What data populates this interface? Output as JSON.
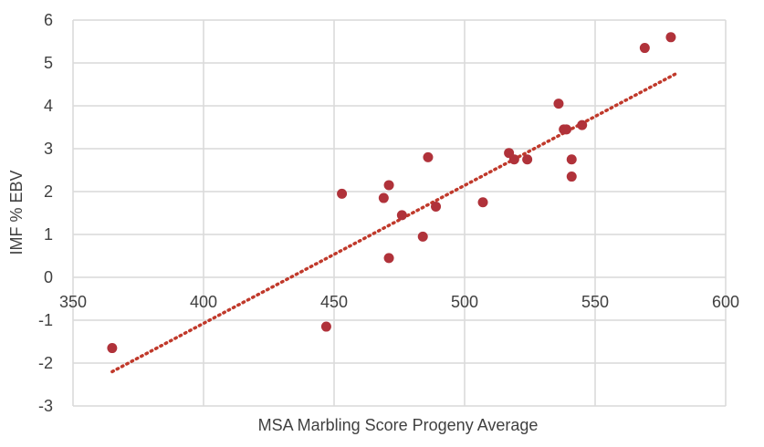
{
  "chart_data": {
    "type": "scatter",
    "xlabel": "MSA Marbling Score Progeny Average",
    "ylabel": "IMF % EBV",
    "xlim": [
      350,
      600
    ],
    "ylim": [
      -3,
      6
    ],
    "x_ticks": [
      350,
      400,
      450,
      500,
      550,
      600
    ],
    "y_ticks": [
      -3,
      -2,
      -1,
      0,
      1,
      2,
      3,
      4,
      5,
      6
    ],
    "grid": true,
    "series": [
      {
        "points": [
          {
            "x": 365,
            "y": -1.65
          },
          {
            "x": 447,
            "y": -1.15
          },
          {
            "x": 453,
            "y": 1.95
          },
          {
            "x": 469,
            "y": 1.85
          },
          {
            "x": 471,
            "y": 2.15
          },
          {
            "x": 471,
            "y": 0.45
          },
          {
            "x": 476,
            "y": 1.45
          },
          {
            "x": 484,
            "y": 0.95
          },
          {
            "x": 486,
            "y": 2.8
          },
          {
            "x": 489,
            "y": 1.65
          },
          {
            "x": 507,
            "y": 1.75
          },
          {
            "x": 517,
            "y": 2.9
          },
          {
            "x": 519,
            "y": 2.75
          },
          {
            "x": 524,
            "y": 2.75
          },
          {
            "x": 536,
            "y": 4.05
          },
          {
            "x": 538,
            "y": 3.45
          },
          {
            "x": 539,
            "y": 3.45
          },
          {
            "x": 541,
            "y": 2.75
          },
          {
            "x": 541,
            "y": 2.35
          },
          {
            "x": 545,
            "y": 3.55
          },
          {
            "x": 569,
            "y": 5.35
          },
          {
            "x": 579,
            "y": 5.6
          }
        ],
        "color": "#b0323a"
      }
    ],
    "trendline": {
      "type": "linear",
      "from": {
        "x": 365,
        "y": -2.2
      },
      "to": {
        "x": 581,
        "y": 4.75
      },
      "color": "#c0392b",
      "style": "dotted"
    }
  },
  "colors": {
    "grid": "#d9d9d9",
    "text": "#404040",
    "background": "#ffffff"
  }
}
